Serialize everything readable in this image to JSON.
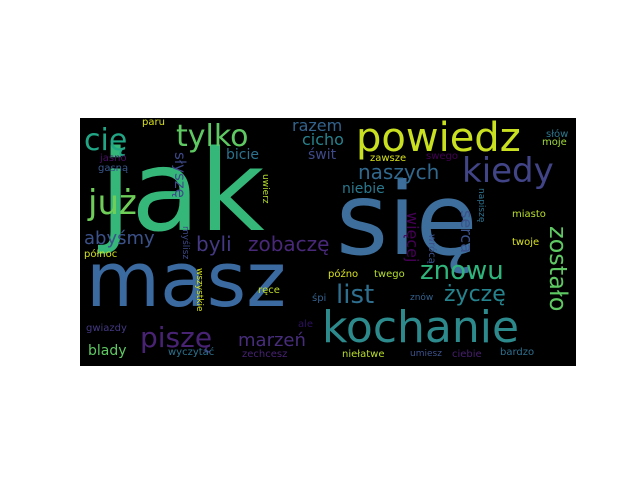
{
  "wordcloud": {
    "background": "#000000",
    "words": [
      {
        "id": "jak",
        "text": "jak",
        "color": "#35b779"
      },
      {
        "id": "sie",
        "text": "się",
        "color": "#3e6f9c"
      },
      {
        "id": "masz",
        "text": "masz",
        "color": "#3b6aa0"
      },
      {
        "id": "kochanie",
        "text": "kochanie",
        "color": "#2d8a8c"
      },
      {
        "id": "powiedz",
        "text": "powiedz",
        "color": "#c8e020"
      },
      {
        "id": "kiedy",
        "text": "kiedy",
        "color": "#414487"
      },
      {
        "id": "tylko",
        "text": "tylko",
        "color": "#5ec962"
      },
      {
        "id": "cie",
        "text": "cię",
        "color": "#21a685"
      },
      {
        "id": "juz",
        "text": "już",
        "color": "#6ece58"
      },
      {
        "id": "znowu",
        "text": "znowu",
        "color": "#2fb47c"
      },
      {
        "id": "list",
        "text": "list",
        "color": "#2e6e8e"
      },
      {
        "id": "pisze",
        "text": "piszę",
        "color": "#482374"
      },
      {
        "id": "zostalo",
        "text": "zostało",
        "color": "#5ec962"
      },
      {
        "id": "zycze",
        "text": "życzę",
        "color": "#25838e"
      },
      {
        "id": "naszych",
        "text": "naszych",
        "color": "#31688e"
      },
      {
        "id": "zobacze",
        "text": "zobaczę",
        "color": "#482878"
      },
      {
        "id": "byli",
        "text": "byli",
        "color": "#443983"
      },
      {
        "id": "marzen",
        "text": "marzeń",
        "color": "#472d7b"
      },
      {
        "id": "abysmy",
        "text": "abyśmy",
        "color": "#3b528b"
      },
      {
        "id": "razem",
        "text": "razem",
        "color": "#33638d"
      },
      {
        "id": "cicho",
        "text": "cicho",
        "color": "#26828e"
      },
      {
        "id": "bicie",
        "text": "bicie",
        "color": "#2c728e"
      },
      {
        "id": "swit",
        "text": "świt",
        "color": "#3e4a89"
      },
      {
        "id": "niebie",
        "text": "niebie",
        "color": "#2a788e"
      },
      {
        "id": "wiecej",
        "text": "więcej",
        "color": "#440154"
      },
      {
        "id": "serca",
        "text": "serca",
        "color": "#3b528b"
      },
      {
        "id": "slysze",
        "text": "słyszę",
        "color": "#3e4989"
      },
      {
        "id": "blady",
        "text": "blady",
        "color": "#5ec962"
      },
      {
        "id": "napisze",
        "text": "napiszę",
        "color": "#2c728e"
      },
      {
        "id": "miasto",
        "text": "miasto",
        "color": "#b8de29"
      },
      {
        "id": "twoje",
        "text": "twoje",
        "color": "#d8e219"
      },
      {
        "id": "zawsze",
        "text": "zawsze",
        "color": "#d8e219"
      },
      {
        "id": "swego",
        "text": "swego",
        "color": "#440154"
      },
      {
        "id": "slow",
        "text": "słów",
        "color": "#2a788e"
      },
      {
        "id": "moje",
        "text": "moje",
        "color": "#a0da39"
      },
      {
        "id": "paru",
        "text": "paru",
        "color": "#d8e219"
      },
      {
        "id": "jasno",
        "text": "jasno",
        "color": "#471063"
      },
      {
        "id": "gasna",
        "text": "gasną",
        "color": "#38598c"
      },
      {
        "id": "uwierz",
        "text": "uwierz",
        "color": "#b5de2b"
      },
      {
        "id": "myslisz",
        "text": "myślisz",
        "color": "#3e4989"
      },
      {
        "id": "polnoc",
        "text": "północ",
        "color": "#d0e11c"
      },
      {
        "id": "wroca",
        "text": "wrócą",
        "color": "#3b528b"
      },
      {
        "id": "twego",
        "text": "twego",
        "color": "#b5de2b"
      },
      {
        "id": "pozno",
        "text": "późno",
        "color": "#d8e219"
      },
      {
        "id": "rece",
        "text": "ręce",
        "color": "#c2df23"
      },
      {
        "id": "spi",
        "text": "śpi",
        "color": "#34618d"
      },
      {
        "id": "znow",
        "text": "znów",
        "color": "#34618d"
      },
      {
        "id": "wszystkie",
        "text": "wszystkie",
        "color": "#d8e219"
      },
      {
        "id": "ale",
        "text": "ale",
        "color": "#2d1160"
      },
      {
        "id": "gwiazdy",
        "text": "gwiazdy",
        "color": "#443983"
      },
      {
        "id": "wyczytac",
        "text": "wyczytać",
        "color": "#2c728e"
      },
      {
        "id": "zechcesz",
        "text": "zechcesz",
        "color": "#482374"
      },
      {
        "id": "nielatwe",
        "text": "niełatwe",
        "color": "#bade28"
      },
      {
        "id": "umiesz",
        "text": "umiesz",
        "color": "#3b528b"
      },
      {
        "id": "ciebie",
        "text": "ciebie",
        "color": "#481f70"
      },
      {
        "id": "bardzo",
        "text": "bardzo",
        "color": "#2e6f8e"
      }
    ]
  }
}
